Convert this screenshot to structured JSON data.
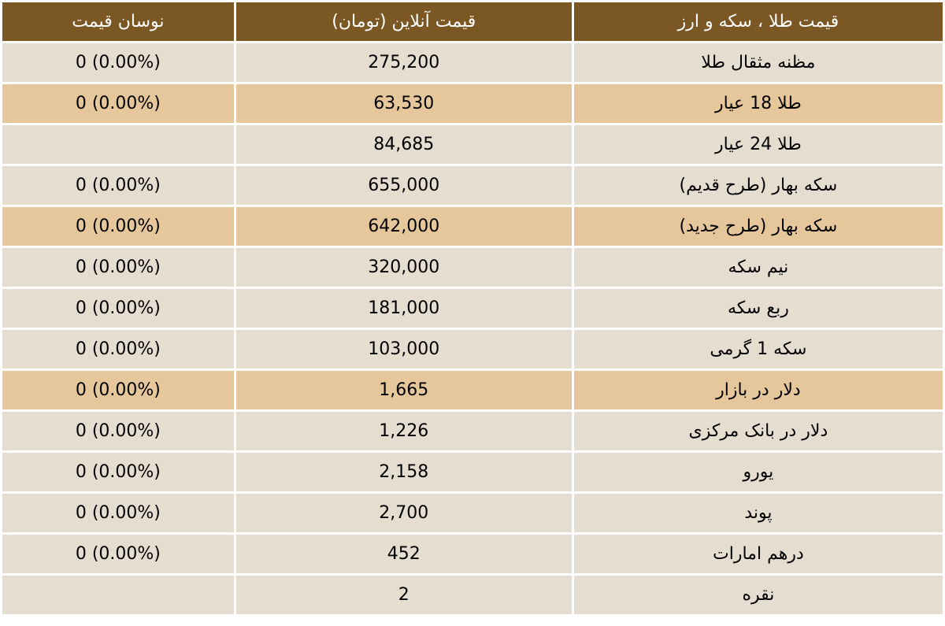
{
  "colors": {
    "header_bg": "#7b5724",
    "header_text": "#ffffff",
    "row_bg": "#e6ddd1",
    "row_highlight_bg": "#e5c79b",
    "border": "#ffffff"
  },
  "headers": {
    "item": "قیمت طلا ، سکه و ارز",
    "price": "قیمت آنلاین (تومان)",
    "change": "نوسان قیمت"
  },
  "rows": [
    {
      "name": "مظنه مثقال طلا",
      "price": "275,200",
      "change": "0 (0.00%)",
      "highlight": false
    },
    {
      "name": "طلا 18 عیار",
      "price": "63,530",
      "change": "0 (0.00%)",
      "highlight": true
    },
    {
      "name": "طلا 24 عیار",
      "price": "84,685",
      "change": "",
      "highlight": false
    },
    {
      "name": "سکه بهار (طرح قدیم)",
      "price": "655,000",
      "change": "0 (0.00%)",
      "highlight": false
    },
    {
      "name": "سکه بهار (طرح جدید)",
      "price": "642,000",
      "change": "0 (0.00%)",
      "highlight": true
    },
    {
      "name": "نیم سکه",
      "price": "320,000",
      "change": "0 (0.00%)",
      "highlight": false
    },
    {
      "name": "ربع سکه",
      "price": "181,000",
      "change": "0 (0.00%)",
      "highlight": false
    },
    {
      "name": "سکه 1 گرمی",
      "price": "103,000",
      "change": "0 (0.00%)",
      "highlight": false
    },
    {
      "name": "دلار در بازار",
      "price": "1,665",
      "change": "0 (0.00%)",
      "highlight": true
    },
    {
      "name": "دلار در بانک مرکزی",
      "price": "1,226",
      "change": "0 (0.00%)",
      "highlight": false
    },
    {
      "name": "یورو",
      "price": "2,158",
      "change": "0 (0.00%)",
      "highlight": false
    },
    {
      "name": "پوند",
      "price": "2,700",
      "change": "0 (0.00%)",
      "highlight": false
    },
    {
      "name": "درهم امارات",
      "price": "452",
      "change": "0 (0.00%)",
      "highlight": false
    },
    {
      "name": "نقره",
      "price": "2",
      "change": "",
      "highlight": false
    }
  ]
}
